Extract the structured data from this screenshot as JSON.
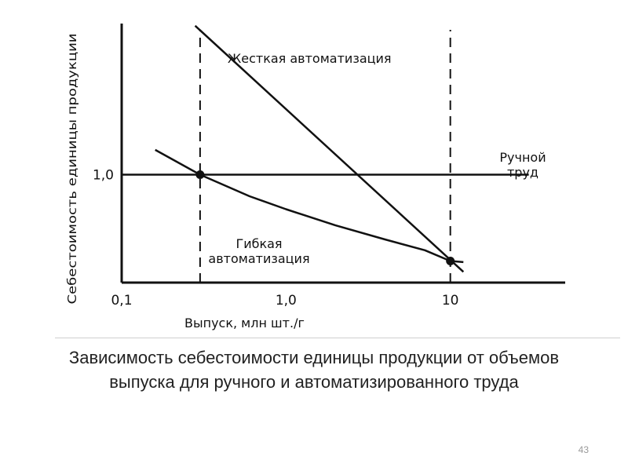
{
  "caption": "Зависимость себестоимости единицы продукции от объемов выпуска для ручного и автоматизированного труда",
  "page_number": "43",
  "chart_data": {
    "type": "line",
    "title": "",
    "xlabel": "Выпуск, млн  шт./г",
    "ylabel": "Себестоимость единицы продукции",
    "x_scale": "log",
    "xlim": [
      0.1,
      50
    ],
    "ylim": [
      0,
      2.4
    ],
    "x_ticks": [
      {
        "value": 0.1,
        "label": "0,1"
      },
      {
        "value": 1.0,
        "label": "1,0"
      },
      {
        "value": 10,
        "label": "10"
      }
    ],
    "y_ticks": [
      {
        "value": 1.0,
        "label": "1,0"
      }
    ],
    "reference_lines": [
      {
        "orientation": "vertical",
        "x": 0.3,
        "style": "dashed"
      },
      {
        "orientation": "vertical",
        "x": 10,
        "style": "dashed"
      }
    ],
    "series": [
      {
        "name": "Ручной труд",
        "x": [
          0.1,
          30
        ],
        "y": [
          1.0,
          1.0
        ]
      },
      {
        "name": "Жесткая автоматизация",
        "x": [
          0.28,
          12
        ],
        "y": [
          2.38,
          0.1
        ]
      },
      {
        "name": "Гибкая автоматизация",
        "x": [
          0.16,
          0.3,
          0.6,
          1.0,
          2.0,
          4.0,
          7.0,
          10,
          12
        ],
        "y": [
          1.23,
          1.0,
          0.8,
          0.68,
          0.53,
          0.4,
          0.3,
          0.2,
          0.19
        ]
      }
    ],
    "markers": [
      {
        "x": 0.3,
        "y": 1.0
      },
      {
        "x": 10,
        "y": 0.2
      }
    ],
    "legend": [
      {
        "text": "Жесткая автоматизация"
      },
      {
        "text": "Ручной\nтруд"
      },
      {
        "text": "Гибкая\nавтоматизация"
      }
    ]
  }
}
